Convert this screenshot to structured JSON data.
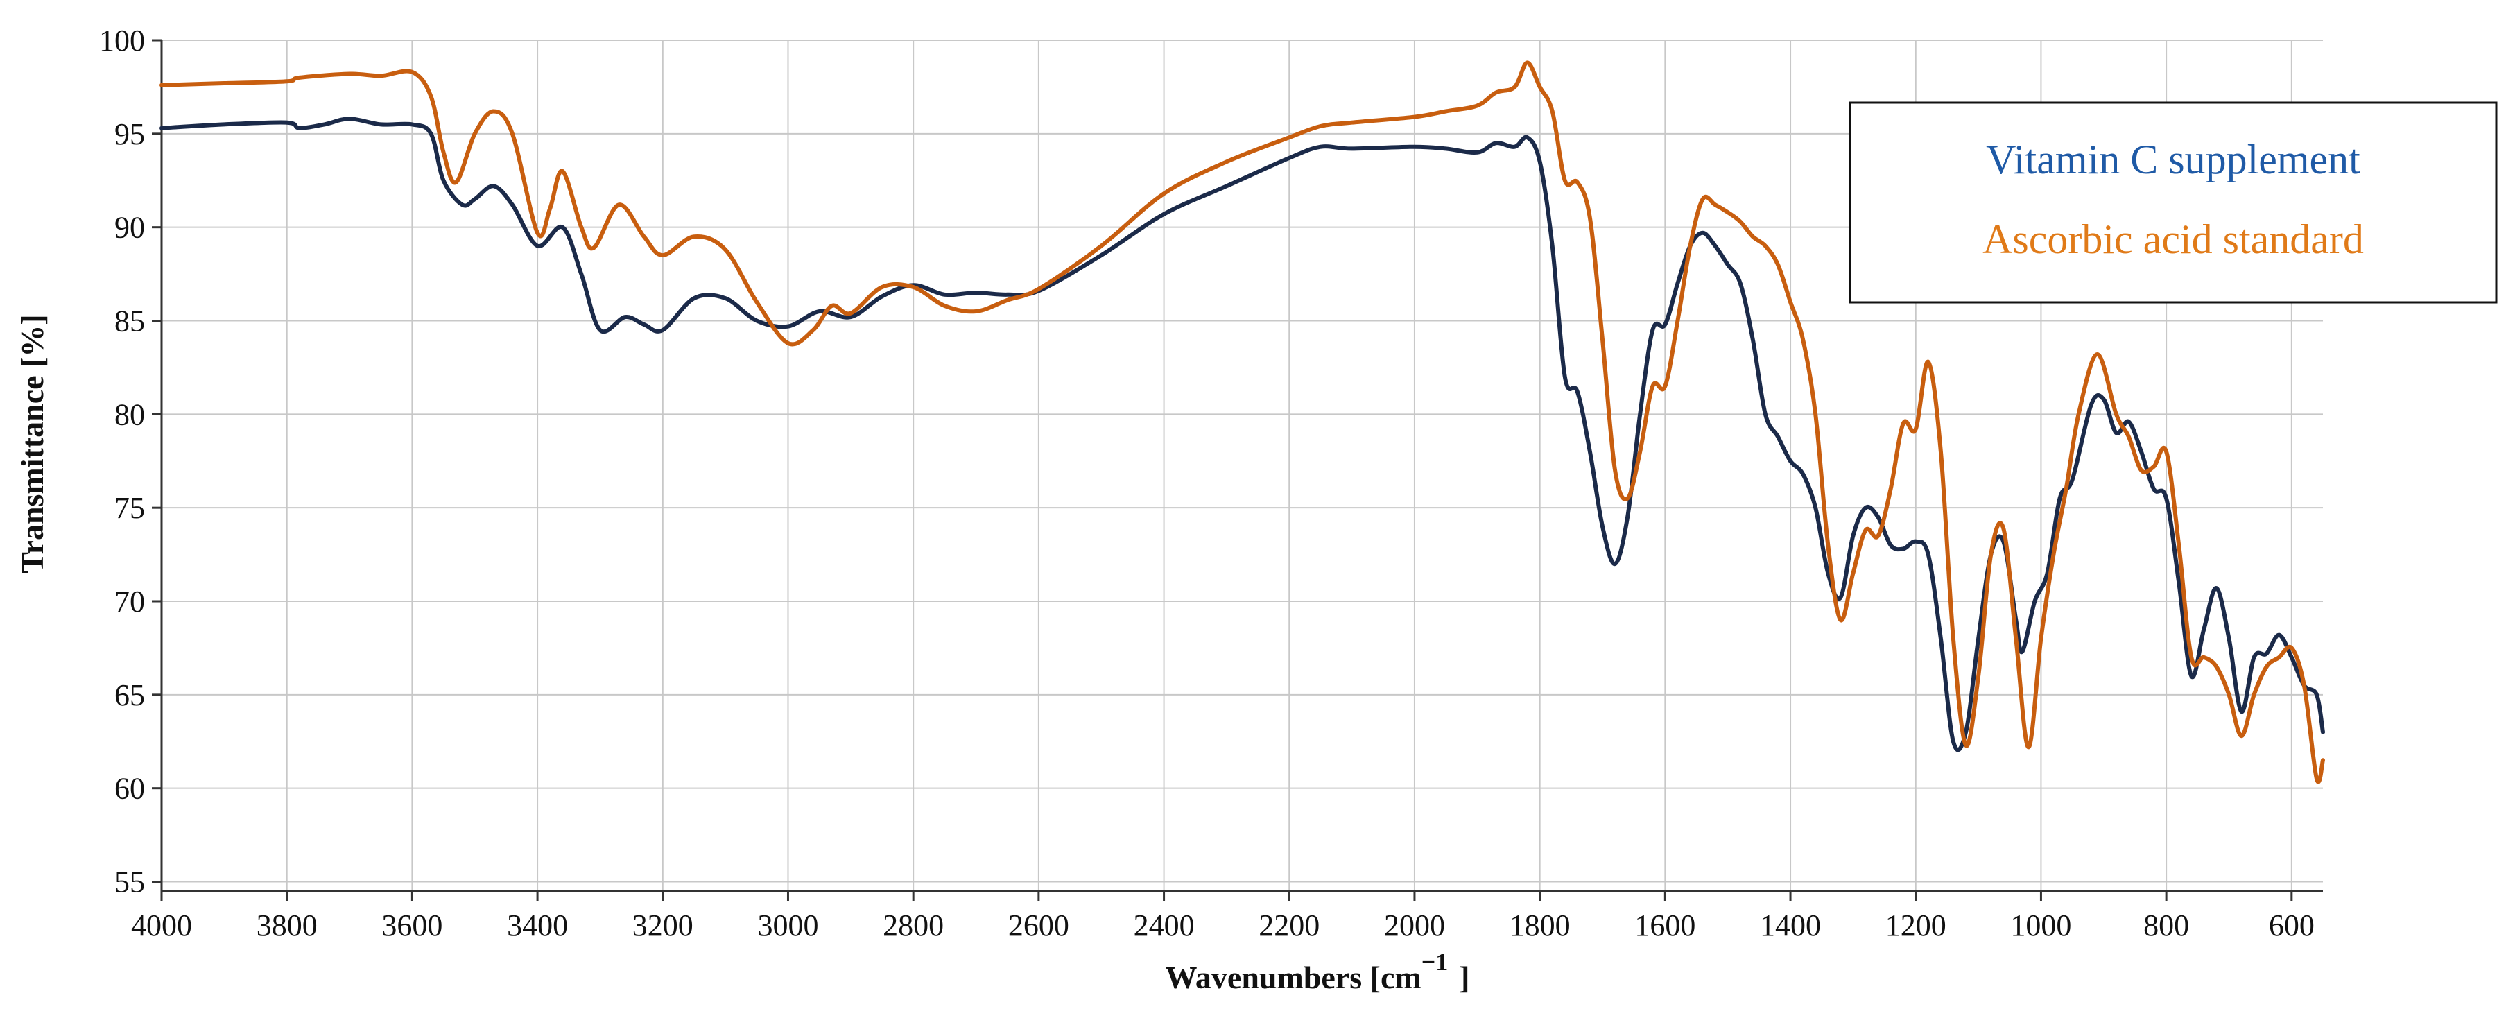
{
  "chart_data": {
    "type": "line",
    "title": "",
    "xlabel": "Wavenumbers [cm",
    "xlabel_superscript": "−1",
    "xlabel_close": "]",
    "ylabel": "Transmittance [%]",
    "xlim": [
      4000,
      550
    ],
    "ylim": [
      54.5,
      100
    ],
    "x_reversed": true,
    "grid": true,
    "legend_position": "top-right",
    "x_ticks": [
      4000,
      3800,
      3600,
      3400,
      3200,
      3000,
      2800,
      2600,
      2400,
      2200,
      2000,
      1800,
      1600,
      1400,
      1200,
      1000,
      800,
      600
    ],
    "y_ticks": [
      55,
      60,
      65,
      70,
      75,
      80,
      85,
      90,
      95,
      100
    ],
    "series": [
      {
        "name": "Vitamin C supplement",
        "color": "#1b2a49",
        "legend_color": "#1f5aa6",
        "points": [
          [
            4000,
            95.3
          ],
          [
            3900,
            95.5
          ],
          [
            3800,
            95.6
          ],
          [
            3780,
            95.3
          ],
          [
            3740,
            95.5
          ],
          [
            3700,
            95.8
          ],
          [
            3650,
            95.5
          ],
          [
            3600,
            95.5
          ],
          [
            3570,
            95.0
          ],
          [
            3550,
            92.5
          ],
          [
            3520,
            91.2
          ],
          [
            3500,
            91.5
          ],
          [
            3470,
            92.2
          ],
          [
            3440,
            91.2
          ],
          [
            3400,
            89.0
          ],
          [
            3360,
            90.0
          ],
          [
            3330,
            87.5
          ],
          [
            3300,
            84.5
          ],
          [
            3260,
            85.2
          ],
          [
            3230,
            84.8
          ],
          [
            3200,
            84.5
          ],
          [
            3150,
            86.2
          ],
          [
            3100,
            86.2
          ],
          [
            3050,
            85.0
          ],
          [
            3000,
            84.7
          ],
          [
            2950,
            85.5
          ],
          [
            2900,
            85.2
          ],
          [
            2850,
            86.3
          ],
          [
            2800,
            86.9
          ],
          [
            2750,
            86.4
          ],
          [
            2700,
            86.5
          ],
          [
            2650,
            86.4
          ],
          [
            2600,
            86.6
          ],
          [
            2500,
            88.5
          ],
          [
            2400,
            90.7
          ],
          [
            2300,
            92.2
          ],
          [
            2200,
            93.7
          ],
          [
            2150,
            94.3
          ],
          [
            2100,
            94.2
          ],
          [
            2000,
            94.3
          ],
          [
            1950,
            94.2
          ],
          [
            1900,
            94.0
          ],
          [
            1870,
            94.5
          ],
          [
            1840,
            94.3
          ],
          [
            1820,
            94.8
          ],
          [
            1800,
            93.5
          ],
          [
            1780,
            89.0
          ],
          [
            1760,
            82.0
          ],
          [
            1740,
            81.2
          ],
          [
            1720,
            78.0
          ],
          [
            1700,
            74.0
          ],
          [
            1680,
            72.0
          ],
          [
            1660,
            74.5
          ],
          [
            1640,
            80.0
          ],
          [
            1620,
            84.5
          ],
          [
            1600,
            84.8
          ],
          [
            1580,
            87.0
          ],
          [
            1560,
            89.0
          ],
          [
            1540,
            89.7
          ],
          [
            1520,
            89.0
          ],
          [
            1500,
            88.0
          ],
          [
            1480,
            87.0
          ],
          [
            1460,
            84.0
          ],
          [
            1440,
            80.0
          ],
          [
            1420,
            78.8
          ],
          [
            1400,
            77.5
          ],
          [
            1380,
            76.8
          ],
          [
            1360,
            75.0
          ],
          [
            1340,
            71.5
          ],
          [
            1320,
            70.2
          ],
          [
            1300,
            73.5
          ],
          [
            1280,
            75.0
          ],
          [
            1260,
            74.5
          ],
          [
            1240,
            73.0
          ],
          [
            1220,
            72.8
          ],
          [
            1200,
            73.2
          ],
          [
            1180,
            72.5
          ],
          [
            1160,
            68.0
          ],
          [
            1140,
            62.5
          ],
          [
            1120,
            63.0
          ],
          [
            1100,
            68.0
          ],
          [
            1080,
            72.5
          ],
          [
            1060,
            73.2
          ],
          [
            1040,
            69.0
          ],
          [
            1030,
            67.3
          ],
          [
            1010,
            70.0
          ],
          [
            990,
            71.5
          ],
          [
            970,
            75.5
          ],
          [
            950,
            76.5
          ],
          [
            920,
            80.5
          ],
          [
            900,
            80.8
          ],
          [
            880,
            79.0
          ],
          [
            860,
            79.6
          ],
          [
            840,
            78.0
          ],
          [
            820,
            76.0
          ],
          [
            800,
            75.5
          ],
          [
            780,
            71.0
          ],
          [
            760,
            66.0
          ],
          [
            740,
            68.5
          ],
          [
            720,
            70.7
          ],
          [
            700,
            68.0
          ],
          [
            680,
            64.1
          ],
          [
            660,
            67.0
          ],
          [
            640,
            67.2
          ],
          [
            620,
            68.2
          ],
          [
            600,
            67.0
          ],
          [
            580,
            65.5
          ],
          [
            560,
            65.0
          ],
          [
            550,
            63.0
          ]
        ]
      },
      {
        "name": "Ascorbic acid standard",
        "color": "#c85e0f",
        "legend_color": "#e07a18",
        "points": [
          [
            4000,
            97.6
          ],
          [
            3900,
            97.7
          ],
          [
            3800,
            97.8
          ],
          [
            3780,
            98.0
          ],
          [
            3700,
            98.2
          ],
          [
            3650,
            98.1
          ],
          [
            3600,
            98.3
          ],
          [
            3570,
            97.0
          ],
          [
            3550,
            94.0
          ],
          [
            3530,
            92.4
          ],
          [
            3500,
            95.0
          ],
          [
            3470,
            96.2
          ],
          [
            3440,
            95.0
          ],
          [
            3400,
            89.7
          ],
          [
            3380,
            91.0
          ],
          [
            3360,
            93.0
          ],
          [
            3330,
            90.0
          ],
          [
            3310,
            88.9
          ],
          [
            3270,
            91.2
          ],
          [
            3230,
            89.5
          ],
          [
            3200,
            88.5
          ],
          [
            3150,
            89.5
          ],
          [
            3100,
            88.8
          ],
          [
            3050,
            86.0
          ],
          [
            3000,
            83.8
          ],
          [
            2960,
            84.5
          ],
          [
            2930,
            85.8
          ],
          [
            2900,
            85.4
          ],
          [
            2850,
            86.8
          ],
          [
            2800,
            86.8
          ],
          [
            2750,
            85.8
          ],
          [
            2700,
            85.5
          ],
          [
            2650,
            86.1
          ],
          [
            2600,
            86.7
          ],
          [
            2500,
            89.0
          ],
          [
            2400,
            91.8
          ],
          [
            2300,
            93.5
          ],
          [
            2200,
            94.8
          ],
          [
            2150,
            95.4
          ],
          [
            2100,
            95.6
          ],
          [
            2000,
            95.9
          ],
          [
            1950,
            96.2
          ],
          [
            1900,
            96.5
          ],
          [
            1870,
            97.2
          ],
          [
            1840,
            97.5
          ],
          [
            1820,
            98.8
          ],
          [
            1800,
            97.5
          ],
          [
            1780,
            96.2
          ],
          [
            1760,
            92.5
          ],
          [
            1740,
            92.4
          ],
          [
            1720,
            90.5
          ],
          [
            1700,
            84.0
          ],
          [
            1680,
            77.0
          ],
          [
            1660,
            75.5
          ],
          [
            1640,
            78.0
          ],
          [
            1620,
            81.5
          ],
          [
            1600,
            81.5
          ],
          [
            1580,
            85.0
          ],
          [
            1560,
            89.0
          ],
          [
            1540,
            91.5
          ],
          [
            1520,
            91.2
          ],
          [
            1500,
            90.8
          ],
          [
            1480,
            90.3
          ],
          [
            1460,
            89.5
          ],
          [
            1440,
            89.0
          ],
          [
            1420,
            88.0
          ],
          [
            1400,
            86.0
          ],
          [
            1380,
            84.0
          ],
          [
            1360,
            80.0
          ],
          [
            1340,
            73.0
          ],
          [
            1320,
            69.0
          ],
          [
            1300,
            71.5
          ],
          [
            1280,
            73.8
          ],
          [
            1260,
            73.5
          ],
          [
            1240,
            76.0
          ],
          [
            1220,
            79.5
          ],
          [
            1200,
            79.2
          ],
          [
            1180,
            82.8
          ],
          [
            1160,
            78.0
          ],
          [
            1140,
            68.0
          ],
          [
            1120,
            62.3
          ],
          [
            1100,
            66.0
          ],
          [
            1080,
            72.5
          ],
          [
            1060,
            73.9
          ],
          [
            1040,
            68.0
          ],
          [
            1020,
            62.2
          ],
          [
            1000,
            68.0
          ],
          [
            980,
            72.5
          ],
          [
            960,
            76.0
          ],
          [
            940,
            80.0
          ],
          [
            910,
            83.2
          ],
          [
            880,
            80.0
          ],
          [
            860,
            78.8
          ],
          [
            840,
            77.0
          ],
          [
            820,
            77.2
          ],
          [
            800,
            78.0
          ],
          [
            780,
            73.0
          ],
          [
            760,
            67.0
          ],
          [
            740,
            67.0
          ],
          [
            720,
            66.5
          ],
          [
            700,
            65.0
          ],
          [
            680,
            62.8
          ],
          [
            660,
            65.0
          ],
          [
            640,
            66.5
          ],
          [
            620,
            67.0
          ],
          [
            600,
            67.5
          ],
          [
            580,
            65.5
          ],
          [
            560,
            60.5
          ],
          [
            550,
            61.5
          ]
        ]
      }
    ]
  }
}
